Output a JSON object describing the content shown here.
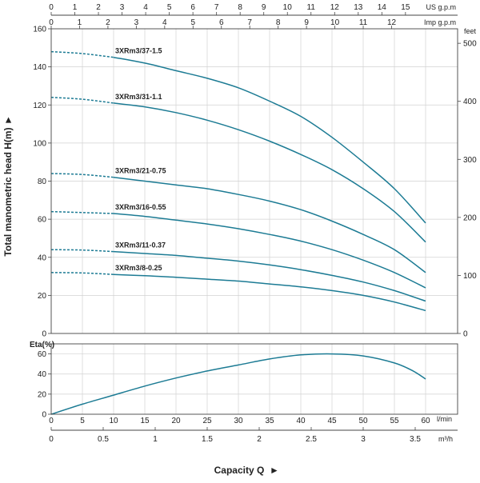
{
  "colors": {
    "curve": "#1c7b94",
    "grid": "#d2d2d2",
    "frame": "#444444",
    "text": "#222222"
  },
  "chart_data": [
    {
      "type": "line",
      "panel": "head",
      "x_axis": {
        "label": "l/min",
        "range": [
          0,
          60
        ],
        "ticks": [
          0,
          5,
          10,
          15,
          20,
          25,
          30,
          35,
          40,
          45,
          50,
          55,
          60
        ]
      },
      "y_axis": {
        "label": "Total manometric head H(m)",
        "range": [
          0,
          160
        ],
        "ticks": [
          0,
          20,
          40,
          60,
          80,
          100,
          120,
          140,
          160
        ]
      },
      "y2_axis": {
        "label": "feet",
        "range": [
          0,
          525
        ],
        "ticks": [
          0,
          100,
          200,
          300,
          400,
          500
        ]
      },
      "top_axes": [
        {
          "label": "US g.p.m",
          "ticks": [
            0,
            1,
            2,
            3,
            4,
            5,
            6,
            7,
            8,
            9,
            10,
            11,
            12,
            13,
            14,
            15
          ],
          "lpm_per_unit": 3.785
        },
        {
          "label": "Imp g.p.m",
          "ticks": [
            0,
            1,
            2,
            3,
            4,
            5,
            6,
            7,
            8,
            9,
            10,
            11,
            12
          ],
          "lpm_per_unit": 4.546
        }
      ],
      "grid": true,
      "series": [
        {
          "name": "3XRm3/37-1.5",
          "dashed": {
            "x": [
              0,
              5,
              10
            ],
            "y": [
              148,
              147,
              145
            ]
          },
          "solid": {
            "x": [
              10,
              15,
              20,
              25,
              30,
              35,
              40,
              45,
              50,
              55,
              60
            ],
            "y": [
              145,
              142,
              138,
              134,
              129,
              122,
              114,
              103,
              90,
              76,
              58
            ]
          }
        },
        {
          "name": "3XRm3/31-1.1",
          "dashed": {
            "x": [
              0,
              5,
              10
            ],
            "y": [
              124,
              123,
              121
            ]
          },
          "solid": {
            "x": [
              10,
              15,
              20,
              25,
              30,
              35,
              40,
              45,
              50,
              55,
              60
            ],
            "y": [
              121,
              119,
              116,
              112,
              107,
              101,
              94,
              86,
              76,
              64,
              48
            ]
          }
        },
        {
          "name": "3XRm3/21-0.75",
          "dashed": {
            "x": [
              0,
              5,
              10
            ],
            "y": [
              84,
              83.5,
              82
            ]
          },
          "solid": {
            "x": [
              10,
              15,
              20,
              25,
              30,
              35,
              40,
              45,
              50,
              55,
              60
            ],
            "y": [
              82,
              80,
              78,
              76,
              73,
              69.5,
              65,
              59,
              52,
              44,
              32
            ]
          }
        },
        {
          "name": "3XRm3/16-0.55",
          "dashed": {
            "x": [
              0,
              5,
              10
            ],
            "y": [
              64,
              63.5,
              63
            ]
          },
          "solid": {
            "x": [
              10,
              15,
              20,
              25,
              30,
              35,
              40,
              45,
              50,
              55,
              60
            ],
            "y": [
              63,
              61.5,
              59.5,
              57.5,
              55,
              52,
              48.5,
              44,
              38.5,
              32,
              24
            ]
          }
        },
        {
          "name": "3XRm3/11-0.37",
          "dashed": {
            "x": [
              0,
              5,
              10
            ],
            "y": [
              44,
              43.8,
              43
            ]
          },
          "solid": {
            "x": [
              10,
              15,
              20,
              25,
              30,
              35,
              40,
              45,
              50,
              55,
              60
            ],
            "y": [
              43,
              42,
              41,
              39.5,
              38,
              36,
              33.5,
              30.5,
              27,
              22.5,
              17
            ]
          }
        },
        {
          "name": "3XRm3/8-0.25",
          "dashed": {
            "x": [
              0,
              5,
              10
            ],
            "y": [
              32,
              31.8,
              31
            ]
          },
          "solid": {
            "x": [
              10,
              15,
              20,
              25,
              30,
              35,
              40,
              45,
              50,
              55,
              60
            ],
            "y": [
              31,
              30.3,
              29.5,
              28.5,
              27.5,
              26,
              24.5,
              22.5,
              20,
              16.5,
              12
            ]
          }
        }
      ]
    },
    {
      "type": "line",
      "panel": "efficiency",
      "x_axis": {
        "label": "l/min",
        "range": [
          0,
          60
        ],
        "ticks": [
          0,
          5,
          10,
          15,
          20,
          25,
          30,
          35,
          40,
          45,
          50,
          55,
          60
        ]
      },
      "x2_axis": {
        "label": "m³/h",
        "range": [
          0,
          3.6
        ],
        "ticks": [
          "0",
          "0.5",
          "1",
          "1.5",
          "2",
          "2.5",
          "3",
          "3.5"
        ]
      },
      "y_axis": {
        "label": "Eta(%)",
        "range": [
          0,
          70
        ],
        "ticks": [
          0,
          20,
          40,
          60
        ]
      },
      "grid": true,
      "series": [
        {
          "name": "",
          "x": [
            0,
            5,
            10,
            15,
            20,
            25,
            30,
            35,
            40,
            45,
            50,
            55,
            58,
            60
          ],
          "y": [
            0,
            10,
            19,
            28,
            36,
            43,
            49,
            55,
            59,
            60,
            58,
            51,
            43,
            35
          ]
        }
      ]
    }
  ],
  "x_title": "Capacity Q"
}
